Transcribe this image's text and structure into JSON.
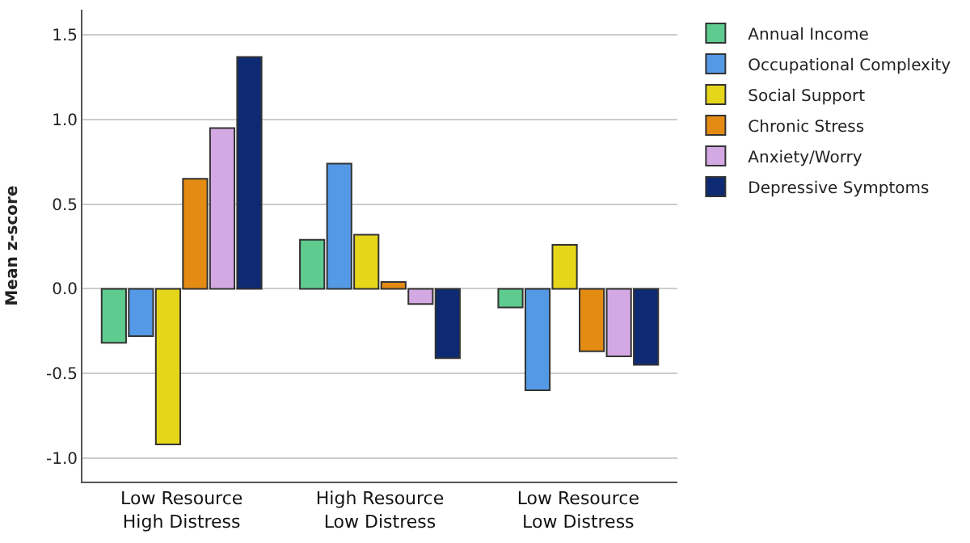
{
  "chart_data": {
    "type": "bar",
    "ylabel": "Mean z-score",
    "categories": [
      "Low Resource\nHigh Distress",
      "High Resource\nLow Distress",
      "Low Resource\nLow Distress"
    ],
    "series": [
      {
        "name": "Annual Income",
        "color": "#5ecb8f",
        "values": [
          -0.32,
          0.29,
          -0.11
        ]
      },
      {
        "name": "Occupational Complexity",
        "color": "#5499e6",
        "values": [
          -0.28,
          0.74,
          -0.6
        ]
      },
      {
        "name": "Social Support",
        "color": "#e5d619",
        "values": [
          -0.92,
          0.32,
          0.26
        ]
      },
      {
        "name": "Chronic Stress",
        "color": "#e38b12",
        "values": [
          0.65,
          0.04,
          -0.37
        ]
      },
      {
        "name": "Anxiety/Worry",
        "color": "#d4a9e3",
        "values": [
          0.95,
          -0.09,
          -0.4
        ]
      },
      {
        "name": "Depressive Symptoms",
        "color": "#0d2a72",
        "values": [
          1.37,
          -0.41,
          -0.45
        ]
      }
    ],
    "ylim": [
      -1.14,
      1.65
    ],
    "yticks": [
      {
        "value": -1,
        "label": "-1.0"
      },
      {
        "value": -0.5,
        "label": "-0.5"
      },
      {
        "value": 0,
        "label": "0.0"
      },
      {
        "value": 0.5,
        "label": "0.5"
      },
      {
        "value": 1,
        "label": "1.0"
      },
      {
        "value": 1.5,
        "label": "1.5"
      }
    ],
    "grid": "y",
    "legend": "top right"
  }
}
